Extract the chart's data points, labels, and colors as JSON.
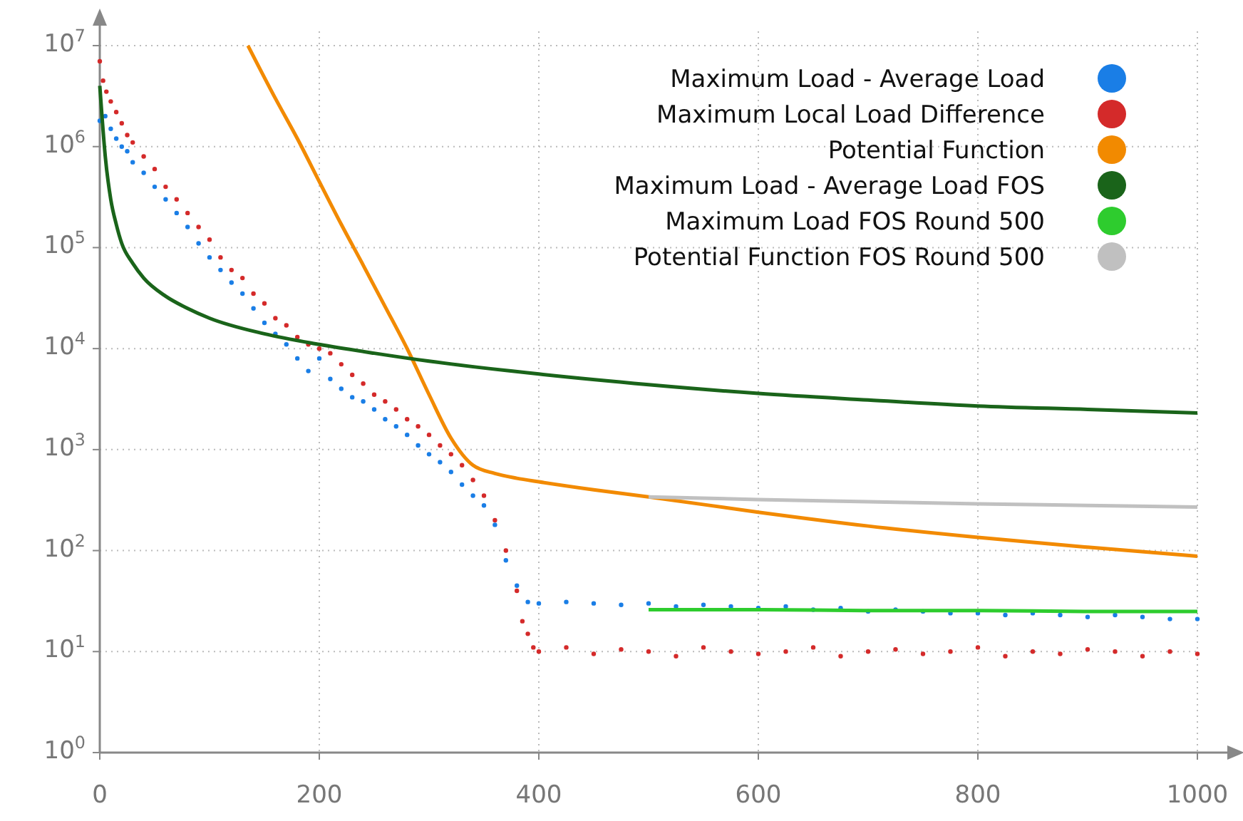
{
  "chart_data": {
    "type": "scatter",
    "log": "y",
    "grid": true,
    "legend": "top right",
    "marker": "circle",
    "xlim": [
      0,
      1000
    ],
    "xticks": [
      0,
      200,
      400,
      600,
      800,
      1000
    ],
    "ylim": [
      1,
      10000000
    ],
    "yticks": [
      {
        "value": 1,
        "label": "10$^{0}$"
      },
      {
        "value": 10,
        "label": "10$^{1}$"
      },
      {
        "value": 100,
        "label": "10$^{2}$"
      },
      {
        "value": 1000,
        "label": "10$^{3}$"
      },
      {
        "value": 10000,
        "label": "10$^{4}$"
      },
      {
        "value": 100000,
        "label": "10$^{5}$"
      },
      {
        "value": 1000000,
        "label": "10$^{6}$"
      },
      {
        "value": 10000000,
        "label": "10$^{7}$"
      }
    ],
    "series": [
      {
        "name": "Maximum Load - Average Load",
        "color": "#1a7ee6",
        "x": [
          0,
          5,
          10,
          15,
          20,
          25,
          30,
          40,
          50,
          60,
          70,
          80,
          90,
          100,
          110,
          120,
          130,
          140,
          150,
          160,
          170,
          180,
          190,
          200,
          210,
          220,
          230,
          240,
          250,
          260,
          270,
          280,
          290,
          300,
          310,
          320,
          330,
          340,
          350,
          360,
          370,
          380,
          390,
          400,
          425,
          450,
          475,
          500,
          525,
          550,
          575,
          600,
          625,
          650,
          675,
          700,
          725,
          750,
          775,
          800,
          825,
          850,
          875,
          900,
          925,
          950,
          975,
          1000
        ],
        "values": [
          1800000,
          2000000,
          1500000,
          1200000,
          1000000,
          900000,
          700000,
          550000,
          400000,
          300000,
          220000,
          160000,
          110000,
          80000,
          60000,
          45000,
          35000,
          25000,
          18000,
          14000,
          11000,
          8000,
          6000,
          8000,
          5000,
          4000,
          3300,
          3000,
          2500,
          2000,
          1700,
          1400,
          1100,
          900,
          750,
          600,
          450,
          350,
          280,
          180,
          80,
          45,
          31,
          30,
          31,
          30,
          29,
          30,
          28,
          29,
          28,
          27,
          28,
          26,
          27,
          25,
          26,
          25,
          24,
          24,
          23,
          24,
          23,
          22,
          23,
          22,
          21,
          21
        ]
      },
      {
        "name": "Maximum Local Load Difference",
        "color": "#d42a2a",
        "x": [
          0,
          3,
          6,
          10,
          15,
          20,
          25,
          30,
          40,
          50,
          60,
          70,
          80,
          90,
          100,
          110,
          120,
          130,
          140,
          150,
          160,
          170,
          180,
          190,
          200,
          210,
          220,
          230,
          240,
          250,
          260,
          270,
          280,
          290,
          300,
          310,
          320,
          330,
          340,
          350,
          360,
          370,
          380,
          385,
          390,
          395,
          400,
          425,
          450,
          475,
          500,
          525,
          550,
          575,
          600,
          625,
          650,
          675,
          700,
          725,
          750,
          775,
          800,
          825,
          850,
          875,
          900,
          925,
          950,
          975,
          1000
        ],
        "values": [
          7000000,
          4500000,
          3500000,
          2800000,
          2200000,
          1700000,
          1300000,
          1100000,
          800000,
          600000,
          400000,
          300000,
          220000,
          160000,
          120000,
          80000,
          60000,
          50000,
          35000,
          28000,
          20000,
          17000,
          13000,
          11000,
          10000,
          9000,
          7000,
          5500,
          4500,
          3500,
          3000,
          2500,
          2000,
          1700,
          1400,
          1100,
          900,
          700,
          500,
          350,
          200,
          100,
          40,
          20,
          15,
          11,
          10,
          11,
          9.5,
          10.5,
          10,
          9,
          11,
          10,
          9.5,
          10,
          11,
          9,
          10,
          10.5,
          9.5,
          10,
          11,
          9,
          10,
          9.5,
          10.5,
          10,
          9,
          10,
          9.5
        ]
      },
      {
        "name": "Potential Function",
        "color": "#f28a00",
        "type": "line",
        "marker": "none",
        "x": [
          135,
          160,
          180,
          200,
          220,
          240,
          260,
          280,
          300,
          320,
          340,
          360,
          380,
          400,
          450,
          500,
          600,
          700,
          800,
          900,
          1000
        ],
        "values": [
          10000000,
          3000000,
          1200000,
          450000,
          170000,
          67000,
          26000,
          10000,
          3500,
          1300,
          700,
          580,
          520,
          480,
          400,
          340,
          240,
          175,
          135,
          108,
          88
        ]
      },
      {
        "name": "Maximum Load - Average Load FOS",
        "color": "#1a641a",
        "type": "line",
        "marker": "none",
        "x": [
          0,
          2,
          5,
          10,
          15,
          20,
          30,
          40,
          60,
          80,
          100,
          150,
          200,
          250,
          300,
          400,
          500,
          600,
          700,
          800,
          900,
          1000
        ],
        "values": [
          4000000,
          2000000,
          800000,
          300000,
          170000,
          110000,
          70000,
          50000,
          33000,
          25000,
          20000,
          14000,
          11000,
          9000,
          7500,
          5600,
          4400,
          3600,
          3100,
          2700,
          2500,
          2300
        ]
      },
      {
        "name": "Maximum Load FOS Round 500",
        "color": "#2ecc2e",
        "type": "line",
        "marker": "none",
        "x": [
          500,
          600,
          700,
          800,
          900,
          1000
        ],
        "values": [
          26,
          26,
          25.5,
          25.5,
          25,
          25
        ]
      },
      {
        "name": "Potential Function FOS Round 500",
        "color": "#c0c0c0",
        "type": "line",
        "marker": "none",
        "x": [
          500,
          600,
          700,
          800,
          900,
          1000
        ],
        "values": [
          340,
          320,
          305,
          290,
          280,
          270
        ]
      }
    ]
  }
}
